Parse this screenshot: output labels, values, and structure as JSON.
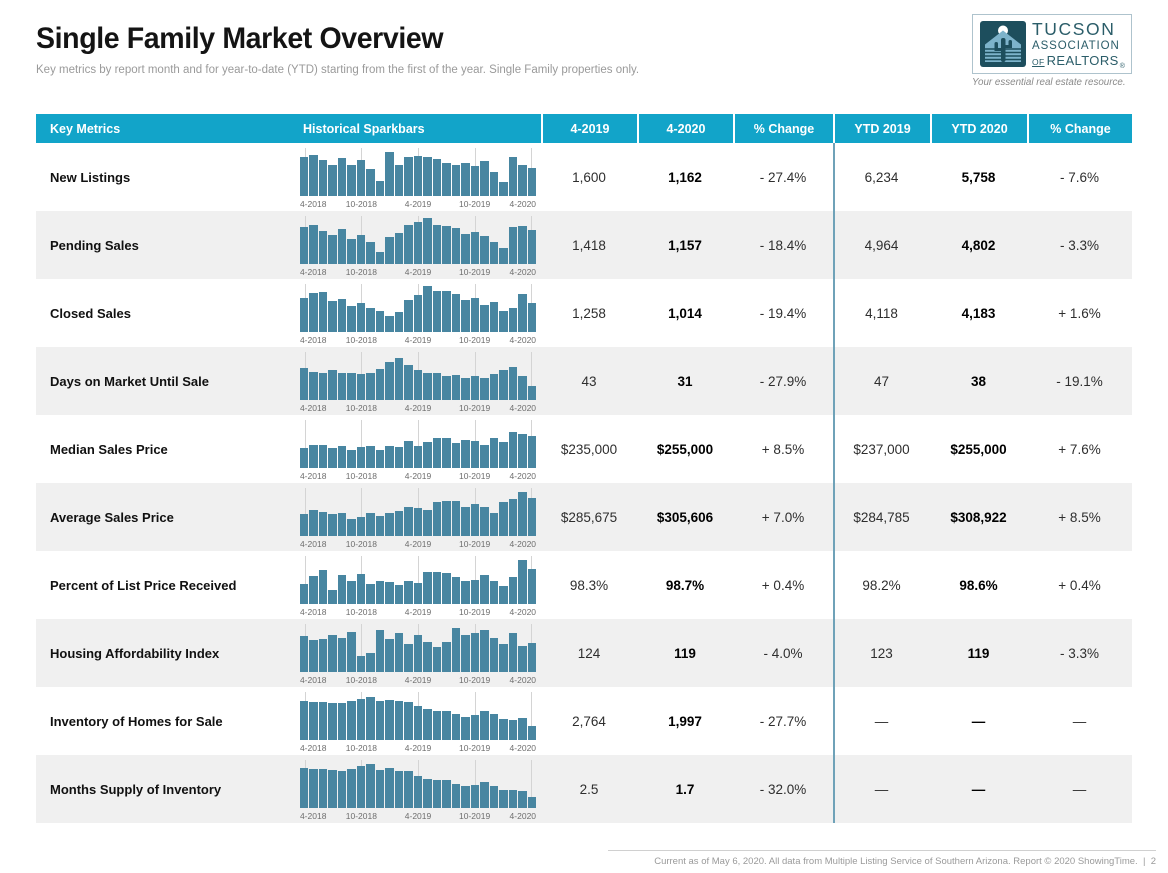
{
  "page": {
    "title": "Single Family Market Overview",
    "subtitle": "Key metrics by report month and for year-to-date (YTD) starting from the first of the year. Single Family properties only.",
    "footer": "Current as of May 6, 2020. All data from Multiple Listing Service of Southern Arizona. Report © 2020 ShowingTime.  |  2"
  },
  "logo": {
    "line1": "TUCSON",
    "line2": "ASSOCIATION",
    "line3_of": "OF",
    "line3_realtors": "REALTORS",
    "registered": "®",
    "tagline": "Your essential real estate resource."
  },
  "colors": {
    "header_bg": "#12a4c9",
    "bar_fill": "#4886a1",
    "row_alt_bg": "#f0f0f0",
    "ytd_separator": "#6fa2b8",
    "logo_teal": "#2b5d69"
  },
  "table": {
    "columns": [
      "Key Metrics",
      "Historical Sparkbars",
      "4-2019",
      "4-2020",
      "% Change",
      "YTD 2019",
      "YTD 2020",
      "% Change"
    ],
    "sparkbar_ticks": [
      "4-2018",
      "10-2018",
      "4-2019",
      "10-2019",
      "4-2020"
    ],
    "rows": [
      {
        "label": "New Listings",
        "m2019": "1,600",
        "m2020": "1,162",
        "mchange": "- 27.4%",
        "ytd2019": "6,234",
        "ytd2020": "5,758",
        "ytdchange": "- 7.6%",
        "sparkbar": [
          82,
          88,
          76,
          66,
          80,
          66,
          76,
          58,
          32,
          93,
          66,
          84,
          85,
          84,
          79,
          70,
          66,
          71,
          64,
          75,
          52,
          30,
          83,
          66,
          60
        ]
      },
      {
        "label": "Pending Sales",
        "m2019": "1,418",
        "m2020": "1,157",
        "mchange": "- 18.4%",
        "ytd2019": "4,964",
        "ytd2020": "4,802",
        "ytdchange": "- 3.3%",
        "sparkbar": [
          78,
          84,
          70,
          62,
          74,
          54,
          62,
          46,
          25,
          58,
          66,
          84,
          90,
          97,
          82,
          80,
          76,
          64,
          68,
          60,
          46,
          34,
          78,
          80,
          72
        ]
      },
      {
        "label": "Closed Sales",
        "m2019": "1,258",
        "m2020": "1,014",
        "mchange": "- 19.4%",
        "ytd2019": "4,118",
        "ytd2020": "4,183",
        "ytdchange": "+ 1.6%",
        "sparkbar": [
          72,
          82,
          85,
          65,
          70,
          55,
          62,
          52,
          45,
          35,
          42,
          68,
          78,
          98,
          88,
          87,
          80,
          68,
          72,
          58,
          64,
          45,
          52,
          80,
          62
        ]
      },
      {
        "label": "Days on Market Until Sale",
        "m2019": "43",
        "m2020": "31",
        "mchange": "- 27.9%",
        "ytd2019": "47",
        "ytd2020": "38",
        "ytdchange": "- 19.1%",
        "sparkbar": [
          68,
          60,
          58,
          63,
          58,
          57,
          56,
          58,
          66,
          80,
          90,
          74,
          64,
          57,
          58,
          52,
          54,
          47,
          52,
          46,
          56,
          63,
          70,
          52,
          30
        ]
      },
      {
        "label": "Median Sales Price",
        "m2019": "$235,000",
        "m2020": "$255,000",
        "mchange": "+ 8.5%",
        "ytd2019": "$237,000",
        "ytd2020": "$255,000",
        "ytdchange": "+ 7.6%",
        "sparkbar": [
          42,
          50,
          48,
          43,
          47,
          38,
          45,
          47,
          39,
          46,
          44,
          58,
          47,
          56,
          63,
          63,
          53,
          59,
          58,
          49,
          63,
          56,
          76,
          72,
          69
        ]
      },
      {
        "label": "Average Sales Price",
        "m2019": "$285,675",
        "m2020": "$305,606",
        "mchange": "+ 7.0%",
        "ytd2019": "$284,785",
        "ytd2020": "$308,922",
        "ytdchange": "+ 8.5%",
        "sparkbar": [
          46,
          56,
          52,
          46,
          50,
          36,
          41,
          48,
          43,
          49,
          53,
          62,
          60,
          56,
          72,
          75,
          74,
          62,
          68,
          62,
          48,
          72,
          78,
          93,
          80
        ]
      },
      {
        "label": "Percent of List Price Received",
        "m2019": "98.3%",
        "m2020": "98.7%",
        "mchange": "+ 0.4%",
        "ytd2019": "98.2%",
        "ytd2020": "98.6%",
        "ytdchange": "+ 0.4%",
        "sparkbar": [
          42,
          60,
          73,
          30,
          62,
          50,
          63,
          43,
          50,
          46,
          40,
          48,
          45,
          68,
          68,
          67,
          58,
          48,
          52,
          62,
          50,
          38,
          58,
          93,
          75
        ]
      },
      {
        "label": "Housing Affordability Index",
        "m2019": "124",
        "m2020": "119",
        "mchange": "- 4.0%",
        "ytd2019": "123",
        "ytd2020": "119",
        "ytdchange": "- 3.3%",
        "sparkbar": [
          76,
          68,
          71,
          79,
          73,
          86,
          35,
          40,
          89,
          71,
          83,
          59,
          79,
          63,
          53,
          63,
          93,
          79,
          83,
          89,
          73,
          59,
          83,
          56,
          62
        ]
      },
      {
        "label": "Inventory of Homes for Sale",
        "m2019": "2,764",
        "m2020": "1,997",
        "mchange": "- 27.7%",
        "ytd2019": "—",
        "ytd2020": "—",
        "ytdchange": "—",
        "sparkbar": [
          83,
          80,
          80,
          78,
          78,
          82,
          88,
          92,
          84,
          86,
          82,
          80,
          72,
          66,
          62,
          62,
          56,
          50,
          53,
          62,
          56,
          44,
          42,
          46,
          30
        ]
      },
      {
        "label": "Months Supply of Inventory",
        "m2019": "2.5",
        "m2020": "1.7",
        "mchange": "- 32.0%",
        "ytd2019": "—",
        "ytd2020": "—",
        "ytdchange": "—",
        "sparkbar": [
          86,
          83,
          83,
          81,
          79,
          83,
          89,
          93,
          81,
          86,
          79,
          79,
          69,
          61,
          59,
          59,
          51,
          46,
          49,
          56,
          46,
          39,
          39,
          36,
          24
        ]
      }
    ]
  }
}
